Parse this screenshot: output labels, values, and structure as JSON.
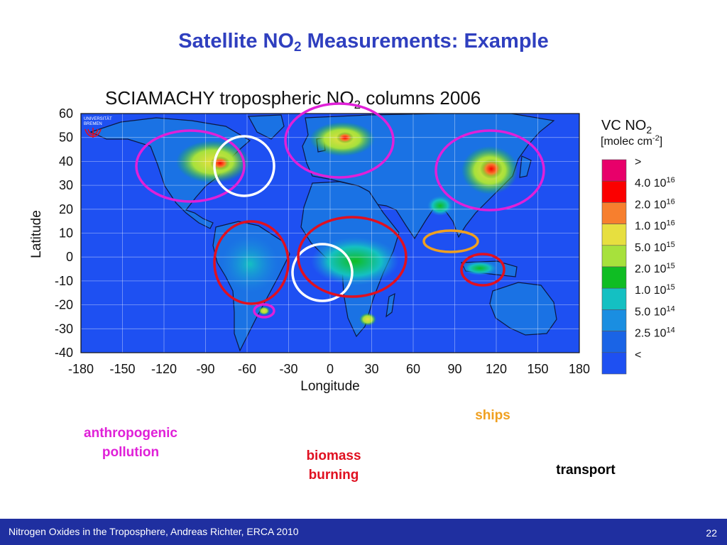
{
  "slide": {
    "title_prefix": "Satellite NO",
    "title_sub": "2",
    "title_suffix": " Measurements: Example"
  },
  "map": {
    "title_prefix": "SCIAMACHY tropospheric NO",
    "title_sub": "2",
    "title_suffix": " columns 2006",
    "x_axis_label": "Longitude",
    "y_axis_label": "Latitude",
    "x_ticks": [
      "-180",
      "-150",
      "-120",
      "-90",
      "-60",
      "-30",
      "0",
      "30",
      "60",
      "90",
      "120",
      "150",
      "180"
    ],
    "y_ticks": [
      "60",
      "50",
      "40",
      "30",
      "20",
      "10",
      "0",
      "-10",
      "-20",
      "-30",
      "-40"
    ],
    "lon_range": [
      -180,
      180
    ],
    "lat_range": [
      -40,
      60
    ],
    "logo_text": [
      "UNIVERSITÄT",
      "BREMEN"
    ]
  },
  "legend": {
    "title_prefix": "VC NO",
    "title_sub": "2",
    "unit_prefix": "[molec cm",
    "unit_sup": "-2",
    "unit_suffix": "]",
    "entries": [
      {
        "label": ">",
        "exp": "",
        "color": "#e8006a"
      },
      {
        "label": "4.0 10",
        "exp": "16",
        "color": "#fb0000"
      },
      {
        "label": "2.0 10",
        "exp": "16",
        "color": "#f77f2e"
      },
      {
        "label": "1.0 10",
        "exp": "16",
        "color": "#e7df3f"
      },
      {
        "label": "5.0 10",
        "exp": "15",
        "color": "#a7e13c"
      },
      {
        "label": "2.0 10",
        "exp": "15",
        "color": "#0fbd23"
      },
      {
        "label": "1.0 10",
        "exp": "15",
        "color": "#14c0c2"
      },
      {
        "label": "5.0 10",
        "exp": "14",
        "color": "#1a8ee1"
      },
      {
        "label": "2.5 10",
        "exp": "14",
        "color": "#1a64e6"
      },
      {
        "label": "<",
        "exp": "",
        "color": "#1e50f2"
      }
    ]
  },
  "captions": {
    "anthropogenic": "anthropogenic pollution",
    "biomass": "biomass burning",
    "ships": "ships",
    "transport": "transport"
  },
  "colors": {
    "anthropogenic": "#e020d8",
    "biomass": "#e01020",
    "ships": "#f0a020",
    "transport": "#000000",
    "title": "#2f3fbf",
    "footer": "#1f2fa0"
  },
  "footer": {
    "text": "Nitrogen Oxides in the Troposphere, Andreas Richter, ERCA 2010",
    "page": "22"
  }
}
